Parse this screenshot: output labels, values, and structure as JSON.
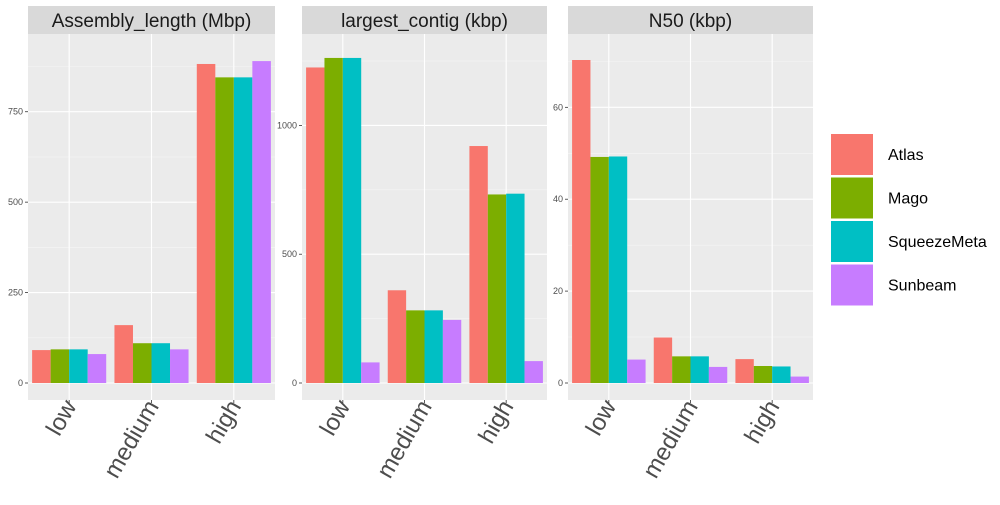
{
  "chart_data": {
    "type": "bar",
    "categories": [
      "low",
      "medium",
      "high"
    ],
    "legend": {
      "position": "right",
      "entries": [
        {
          "name": "Atlas",
          "color": "#F8766D"
        },
        {
          "name": "Mago",
          "color": "#7CAE00"
        },
        {
          "name": "SqueezeMeta",
          "color": "#00BFC4"
        },
        {
          "name": "Sunbeam",
          "color": "#C77CFF"
        }
      ]
    },
    "grid": true,
    "panels": [
      {
        "title": "Assembly_length (Mbp)",
        "ylim": [
          0,
          940
        ],
        "yticks": [
          0,
          250,
          500,
          750
        ],
        "series": [
          {
            "name": "Atlas",
            "values": [
              91,
              160,
              882
            ]
          },
          {
            "name": "Mago",
            "values": [
              93,
              110,
              845
            ]
          },
          {
            "name": "SqueezeMeta",
            "values": [
              93,
              110,
              845
            ]
          },
          {
            "name": "Sunbeam",
            "values": [
              80,
              93,
              890
            ]
          }
        ]
      },
      {
        "title": "largest_contig (kbp)",
        "ylim": [
          0,
          1320
        ],
        "yticks": [
          0,
          500,
          1000
        ],
        "series": [
          {
            "name": "Atlas",
            "values": [
              1225,
              360,
              920
            ]
          },
          {
            "name": "Mago",
            "values": [
              1262,
              282,
              732
            ]
          },
          {
            "name": "SqueezeMeta",
            "values": [
              1262,
              282,
              735
            ]
          },
          {
            "name": "Sunbeam",
            "values": [
              80,
              245,
              85
            ]
          }
        ]
      },
      {
        "title": "N50 (kbp)",
        "ylim": [
          0,
          74
        ],
        "yticks": [
          0,
          20,
          40,
          60
        ],
        "series": [
          {
            "name": "Atlas",
            "values": [
              70.3,
              9.9,
              5.2
            ]
          },
          {
            "name": "Mago",
            "values": [
              49.2,
              5.8,
              3.7
            ]
          },
          {
            "name": "SqueezeMeta",
            "values": [
              49.3,
              5.8,
              3.6
            ]
          },
          {
            "name": "Sunbeam",
            "values": [
              5.1,
              3.5,
              1.4
            ]
          }
        ]
      }
    ]
  }
}
